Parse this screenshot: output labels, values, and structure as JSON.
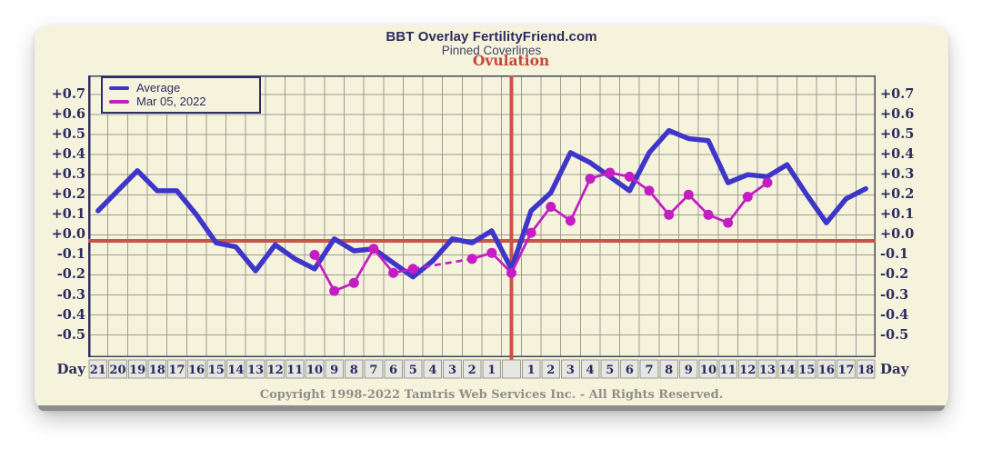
{
  "header": {
    "title": "BBT Overlay FertilityFriend.com",
    "subtitle": "Pinned Coverlines",
    "ovulation_label": "Ovulation"
  },
  "axis": {
    "day_label": "Day"
  },
  "footer": {
    "copyright": "Copyright 1998-2022 Tamtris Web Services Inc. - All Rights Reserved."
  },
  "colors": {
    "card_bg": "#f6f3dd",
    "grid": "#9c9c90",
    "frame": "#44445f",
    "frame_left_accent": "#2f2f63",
    "red_line": "#c9544a",
    "text_navy": "#2b2b5e",
    "day_cell_bg": "#e6e6e3",
    "day_cell_border": "#9a9a90",
    "copyright_gray": "#8f8f88",
    "ovulation_red": "#c5473c"
  },
  "chart_data": {
    "type": "line",
    "title": "BBT Overlay FertilityFriend.com",
    "subtitle": "Pinned Coverlines",
    "grid": true,
    "legend_position": "top-left",
    "coverline_value": -0.03,
    "ovulation_marker": "vertical red line between pre-ovulation day 1 and post-ovulation day 1",
    "y_axis": {
      "min": -0.5,
      "max": 0.7,
      "tick_step": 0.1,
      "ticks": [
        "+0.7",
        "+0.6",
        "+0.5",
        "+0.4",
        "+0.3",
        "+0.2",
        "+0.1",
        "+0.0",
        "-0.1",
        "-0.2",
        "-0.3",
        "-0.4",
        "-0.5"
      ]
    },
    "x_axis": {
      "label": "Day",
      "ovulation_index": 21,
      "cells": [
        "21",
        "20",
        "19",
        "18",
        "17",
        "16",
        "15",
        "14",
        "13",
        "12",
        "11",
        "10",
        "9",
        "8",
        "7",
        "6",
        "5",
        "4",
        "3",
        "2",
        "1",
        "",
        "1",
        "2",
        "3",
        "4",
        "5",
        "6",
        "7",
        "8",
        "9",
        "10",
        "11",
        "12",
        "13",
        "14",
        "15",
        "16",
        "17",
        "18"
      ]
    },
    "series": [
      {
        "name": "Average",
        "color": "#3e36c9",
        "style": "thick-solid",
        "line_width": 5.5,
        "markers": false,
        "values": [
          0.12,
          0.22,
          0.32,
          0.22,
          0.22,
          0.1,
          -0.04,
          -0.06,
          -0.18,
          -0.05,
          -0.12,
          -0.17,
          -0.02,
          -0.08,
          -0.07,
          -0.14,
          -0.21,
          -0.13,
          -0.02,
          -0.04,
          0.02,
          -0.17,
          0.12,
          0.21,
          0.41,
          0.36,
          0.29,
          0.22,
          0.41,
          0.52,
          0.48,
          0.47,
          0.26,
          0.3,
          0.29,
          0.35,
          0.2,
          0.06,
          0.18,
          0.23
        ]
      },
      {
        "name": "Mar 05, 2022",
        "color": "#c31dc3",
        "style": "thin-solid-with-dots",
        "line_width": 2.75,
        "markers": true,
        "values": [
          null,
          null,
          null,
          null,
          null,
          null,
          null,
          null,
          null,
          null,
          null,
          -0.1,
          -0.28,
          -0.24,
          -0.07,
          -0.19,
          -0.17,
          null,
          null,
          -0.12,
          -0.09,
          -0.19,
          0.01,
          0.14,
          0.07,
          0.28,
          0.31,
          0.29,
          0.22,
          0.1,
          0.2,
          0.1,
          0.06,
          0.19,
          0.26,
          null,
          null,
          null,
          null,
          null
        ],
        "dashed_segments": [
          [
            16,
            19
          ]
        ]
      }
    ]
  }
}
